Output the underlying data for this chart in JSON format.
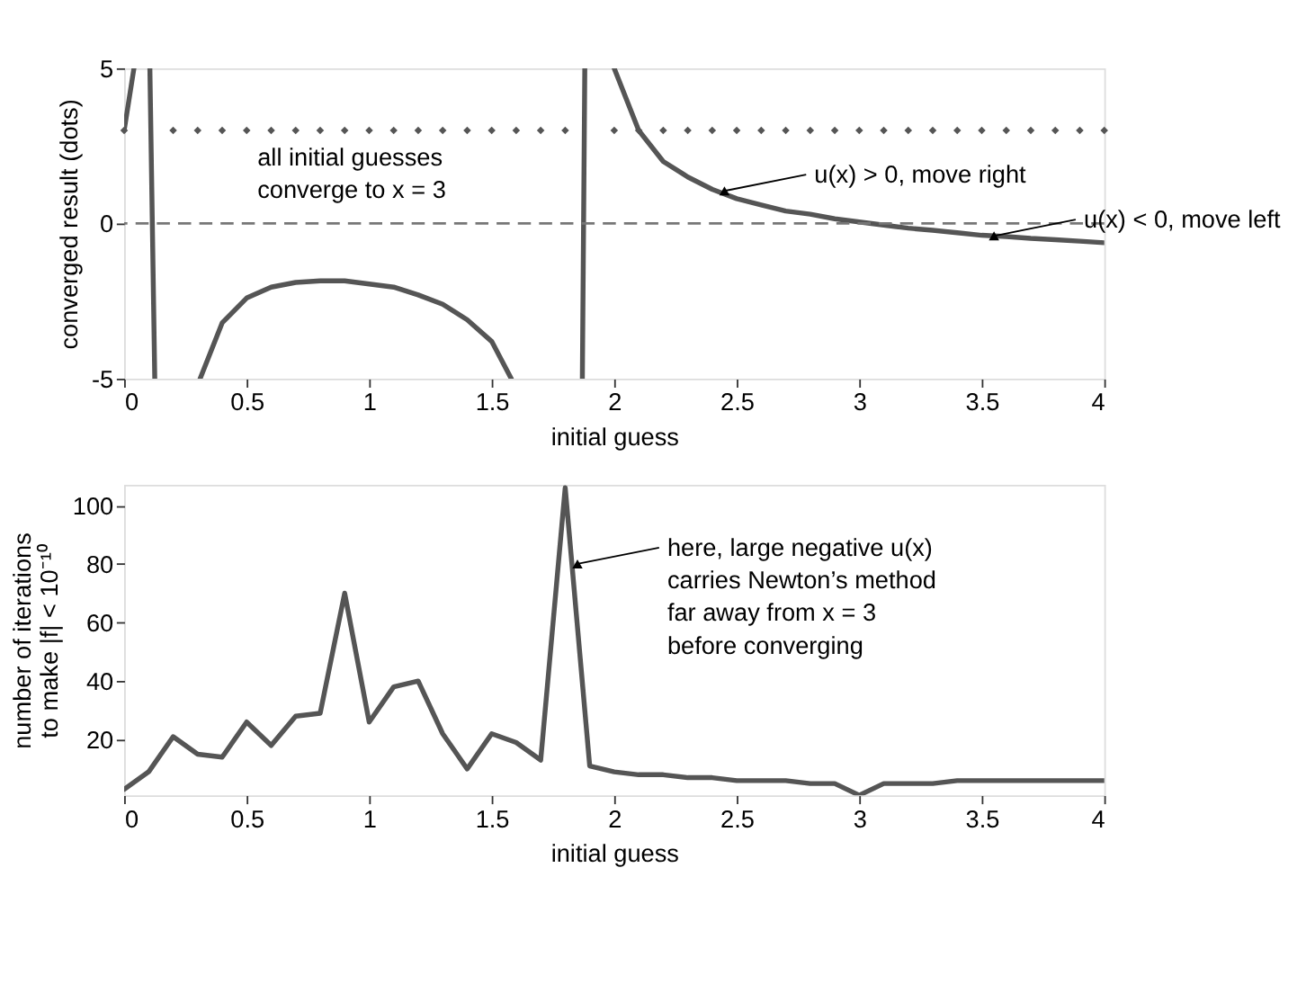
{
  "chart_data": [
    {
      "type": "line",
      "xlabel": "initial guess",
      "ylabel": "converged result (dots)",
      "xlim": [
        0,
        4
      ],
      "ylim": [
        -5,
        5
      ],
      "xticks": [
        0,
        0.5,
        1,
        1.5,
        2,
        2.5,
        3,
        3.5,
        4
      ],
      "yticks": [
        -5,
        0,
        5
      ],
      "grid": false,
      "series": [
        {
          "color": "#555555",
          "x": [
            0,
            0.04,
            0.05,
            0.105,
            0.125,
            0.13,
            0.31,
            0.4,
            0.5,
            0.6,
            0.7,
            0.8,
            0.9,
            1.0,
            1.1,
            1.2,
            1.3,
            1.4,
            1.5,
            1.58,
            1.6,
            1.87,
            1.88,
            1.9,
            2.0,
            2.1,
            2.2,
            2.3,
            2.4,
            2.5,
            2.6,
            2.7,
            2.8,
            2.9,
            3.0,
            3.1,
            3.2,
            3.3,
            3.4,
            3.5,
            3.6,
            3.7,
            3.8,
            3.9,
            4.0
          ],
          "values": [
            3.0,
            5,
            null,
            5,
            -5,
            null,
            -5,
            -3.2,
            -2.4,
            -2.05,
            -1.9,
            -1.85,
            -1.85,
            -1.95,
            -2.05,
            -2.3,
            -2.6,
            -3.1,
            -3.8,
            -5,
            null,
            -5,
            5,
            null,
            5,
            3.0,
            2.0,
            1.5,
            1.1,
            0.8,
            0.6,
            0.4,
            0.3,
            0.15,
            0.05,
            -0.05,
            -0.15,
            -0.22,
            -0.3,
            -0.38,
            -0.42,
            -0.48,
            -0.52,
            -0.57,
            -0.62
          ]
        },
        {
          "type": "scatter",
          "marker": "diamond",
          "color": "#555555",
          "x": [
            0,
            0.2,
            0.3,
            0.4,
            0.5,
            0.6,
            0.7,
            0.8,
            0.9,
            1.0,
            1.1,
            1.2,
            1.3,
            1.4,
            1.5,
            1.6,
            1.7,
            1.8,
            2.0,
            2.1,
            2.2,
            2.3,
            2.4,
            2.5,
            2.6,
            2.7,
            2.8,
            2.9,
            3.0,
            3.1,
            3.2,
            3.3,
            3.4,
            3.5,
            3.6,
            3.7,
            3.8,
            3.9,
            4.0
          ],
          "values": [
            3,
            3,
            3,
            3,
            3,
            3,
            3,
            3,
            3,
            3,
            3,
            3,
            3,
            3,
            3,
            3,
            3,
            3,
            3,
            3,
            3,
            3,
            3,
            3,
            3,
            3,
            3,
            3,
            3,
            3,
            3,
            3,
            3,
            3,
            3,
            3,
            3,
            3,
            3
          ]
        }
      ],
      "ref_lines": [
        {
          "axis": "y",
          "value": 0,
          "line_style": "dashed",
          "color": "#777777"
        }
      ],
      "annotations": [
        "all initial guesses\nconverge to x = 3",
        {
          "text": "u(x) > 0, move right",
          "x": 2.45,
          "y": 1.05
        },
        {
          "text": "u(x) < 0, move left",
          "x": 3.55,
          "y": -0.4
        }
      ]
    },
    {
      "type": "line",
      "xlabel": "initial guess",
      "ylabel": "number of iterations\nto make |f| < 10⁻¹⁰",
      "xlim": [
        0,
        4
      ],
      "ylim": [
        1,
        107
      ],
      "xticks": [
        0,
        0.5,
        1,
        1.5,
        2,
        2.5,
        3,
        3.5,
        4
      ],
      "yticks": [
        20,
        40,
        60,
        80,
        100
      ],
      "grid": false,
      "series": [
        {
          "color": "#555555",
          "x": [
            0,
            0.1,
            0.2,
            0.3,
            0.4,
            0.5,
            0.6,
            0.7,
            0.8,
            0.9,
            1.0,
            1.1,
            1.2,
            1.3,
            1.4,
            1.5,
            1.6,
            1.7,
            1.8,
            1.9,
            2.0,
            2.1,
            2.2,
            2.3,
            2.4,
            2.5,
            2.6,
            2.7,
            2.8,
            2.9,
            3.0,
            3.1,
            3.2,
            3.3,
            3.4,
            3.5,
            3.6,
            3.7,
            3.8,
            3.9,
            4.0
          ],
          "values": [
            3,
            9,
            21,
            15,
            14,
            26,
            18,
            28,
            29,
            70,
            26,
            38,
            40,
            22,
            10,
            22,
            19,
            13,
            106,
            11,
            9,
            8,
            8,
            7,
            7,
            6,
            6,
            6,
            5,
            5,
            1,
            5,
            5,
            5,
            6,
            6,
            6,
            6,
            6,
            6,
            6
          ]
        }
      ],
      "annotations": [
        {
          "text": "here, large negative u(x)\ncarries Newton’s method\nfar away from x = 3\nbefore converging",
          "x": 1.85,
          "y": 80
        }
      ]
    }
  ]
}
